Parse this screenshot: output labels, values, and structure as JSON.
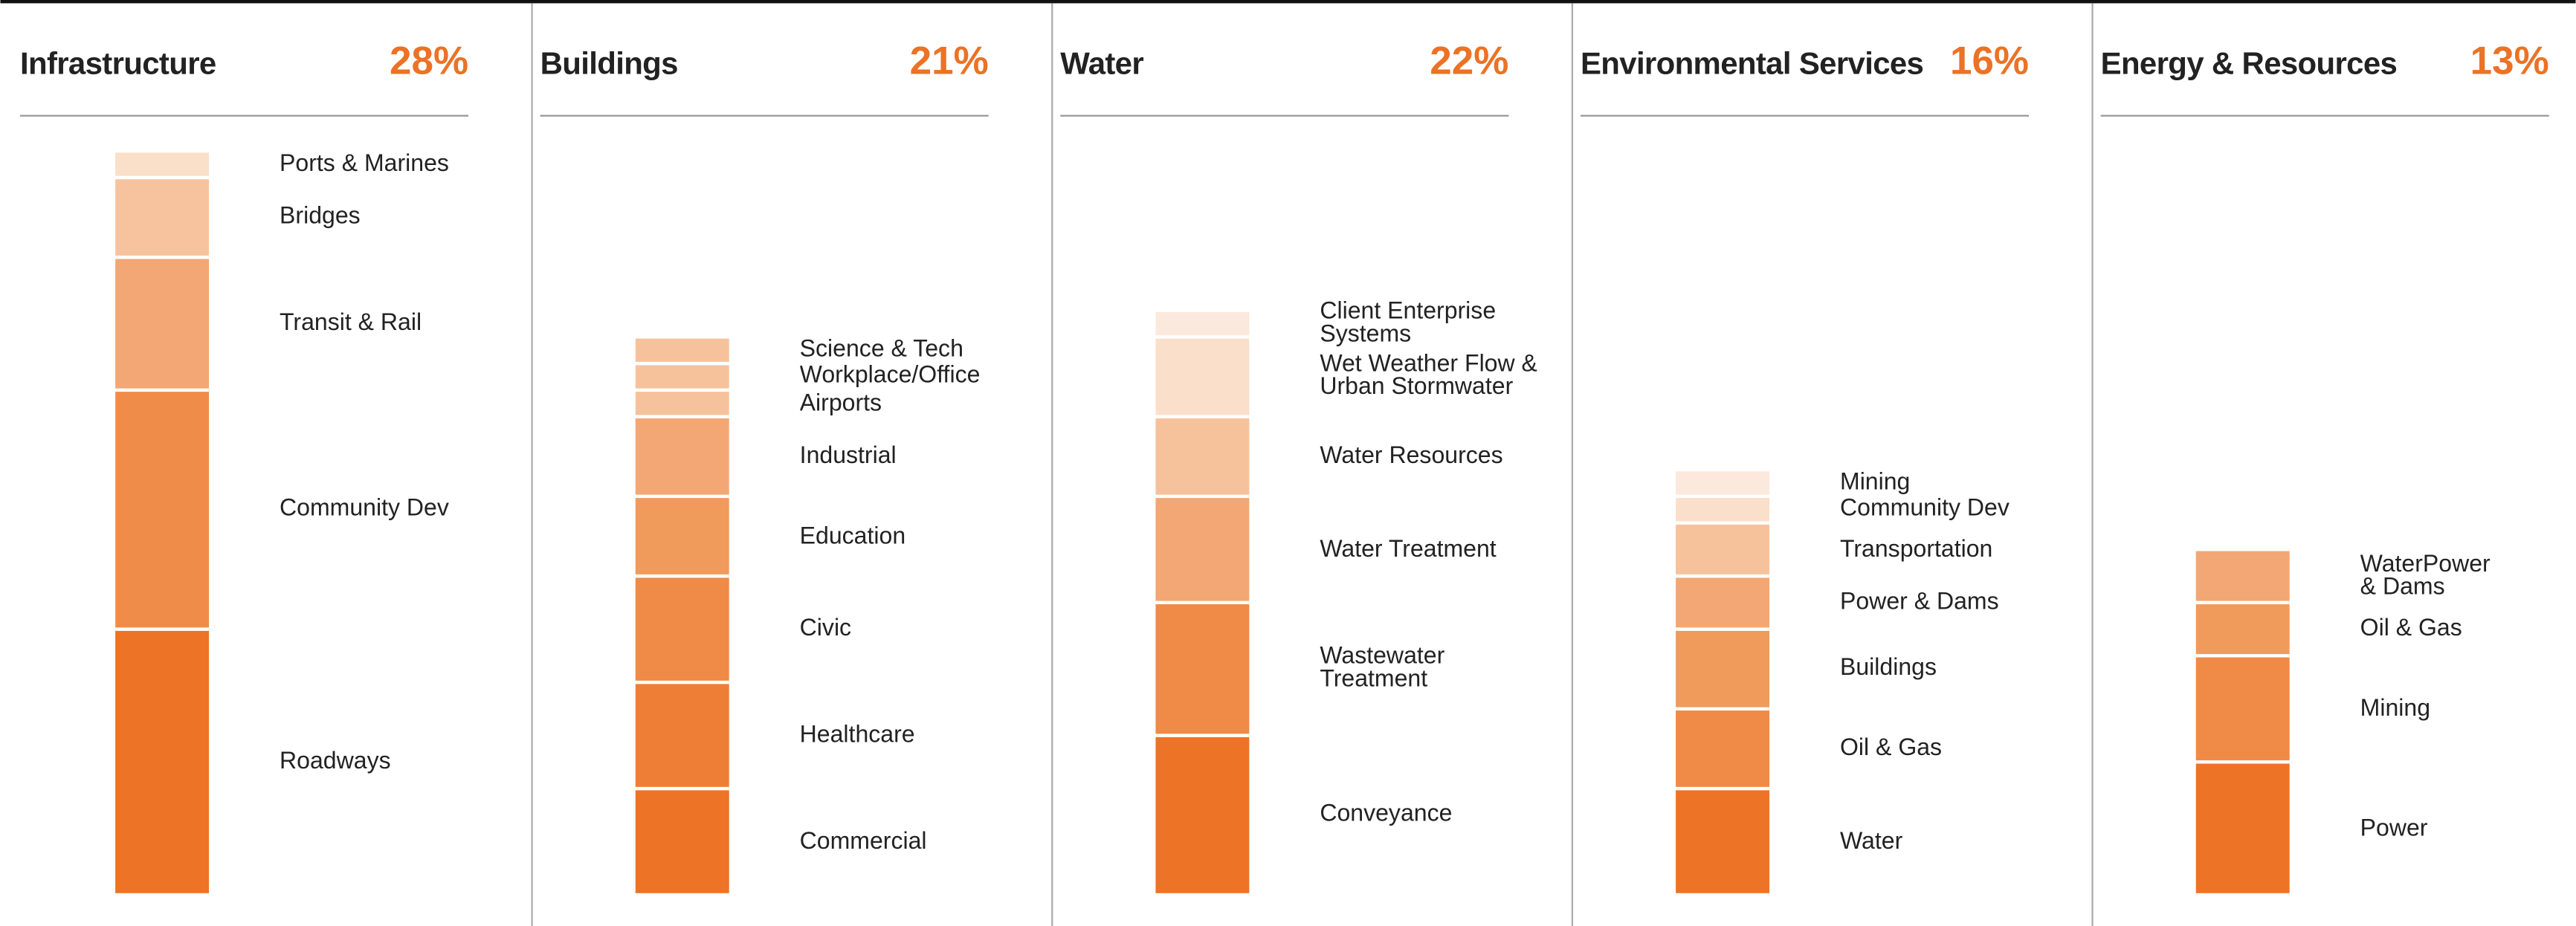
{
  "chart_data": [
    {
      "type": "bar",
      "title": "Infrastructure",
      "share": 28,
      "share_label": "28%",
      "categories": [
        "Roadways",
        "Community Dev",
        "Transit & Rail",
        "Bridges",
        "Ports & Marines"
      ],
      "values": [
        10,
        9,
        5,
        3,
        1
      ],
      "colors": [
        "#ed7326",
        "#f08c49",
        "#f3a774",
        "#f7c39e",
        "#fadfc9"
      ]
    },
    {
      "type": "bar",
      "title": "Buildings",
      "share": 21,
      "share_label": "21%",
      "categories": [
        "Commercial",
        "Healthcare",
        "Civic",
        "Education",
        "Industrial",
        "Airports",
        "Workplace/Office",
        "Science & Tech"
      ],
      "values": [
        4,
        4,
        4,
        3,
        3,
        1,
        1,
        1
      ],
      "colors": [
        "#ed7326",
        "#ee7d35",
        "#ef8a47",
        "#f09a5c",
        "#f3a774",
        "#f6c29c",
        "#f6c29c",
        "#f6c29c"
      ]
    },
    {
      "type": "bar",
      "title": "Water",
      "share": 22,
      "share_label": "22%",
      "categories": [
        "Conveyance",
        "Wastewater\nTreatment",
        "Water Treatment",
        "Water Resources",
        "Wet Weather Flow &\nUrban Stormwater",
        "Client Enterprise\nSystems"
      ],
      "values": [
        6,
        5,
        4,
        3,
        3,
        1
      ],
      "colors": [
        "#ed7326",
        "#ef8a47",
        "#f3a774",
        "#f6c29c",
        "#fadfcb",
        "#fce9dd"
      ]
    },
    {
      "type": "bar",
      "title": "Environmental Services",
      "share": 16,
      "share_label": "16%",
      "categories": [
        "Water",
        "Oil & Gas",
        "Buildings",
        "Power & Dams",
        "Transportation",
        "Community Dev",
        "Mining"
      ],
      "values": [
        4,
        3,
        3,
        2,
        2,
        1,
        1
      ],
      "colors": [
        "#ed7326",
        "#ef8a47",
        "#f09a5c",
        "#f3a774",
        "#f6c29c",
        "#fadfcb",
        "#fce9dd"
      ]
    },
    {
      "type": "bar",
      "title": "Energy & Resources",
      "share": 13,
      "share_label": "13%",
      "categories": [
        "Power",
        "Mining",
        "Oil & Gas",
        "WaterPower\n& Dams"
      ],
      "values": [
        5,
        4,
        2,
        2
      ],
      "colors": [
        "#ed7326",
        "#ef8a47",
        "#f09a5c",
        "#f3a774"
      ]
    }
  ]
}
